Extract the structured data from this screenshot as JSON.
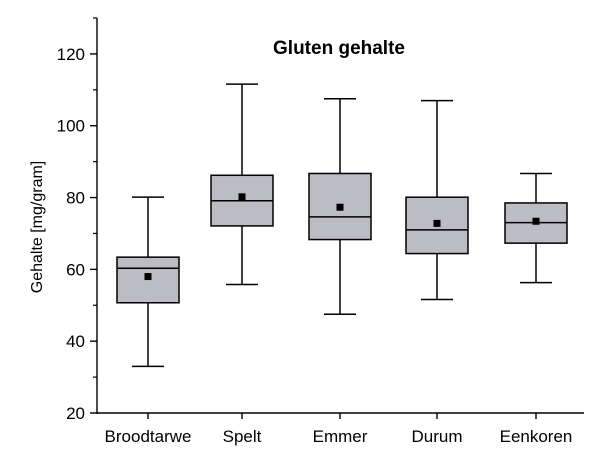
{
  "chart_data": {
    "type": "box",
    "title": "Gluten gehalte",
    "xlabel": "",
    "ylabel": "Gehalte [mg/gram]",
    "ylim": [
      20,
      130
    ],
    "yticks": [
      20,
      40,
      60,
      80,
      100,
      120
    ],
    "categories": [
      "Broodtarwe",
      "Spelt",
      "Emmer",
      "Durum",
      "Eenkoren"
    ],
    "boxes": [
      {
        "min": 33,
        "q1": 50.7,
        "median": 60.3,
        "q3": 63.4,
        "max": 80.1,
        "mean": 58
      },
      {
        "min": 55.8,
        "q1": 72.1,
        "median": 79.1,
        "q3": 86.2,
        "max": 111.6,
        "mean": 80.2
      },
      {
        "min": 47.5,
        "q1": 68.3,
        "median": 74.6,
        "q3": 86.7,
        "max": 107.5,
        "mean": 77.3
      },
      {
        "min": 51.6,
        "q1": 64.4,
        "median": 71,
        "q3": 80.1,
        "max": 107,
        "mean": 72.8
      },
      {
        "min": 56.3,
        "q1": 67.3,
        "median": 73,
        "q3": 78.5,
        "max": 86.7,
        "mean": 73.4
      }
    ],
    "box_fill": "#bcbcc4",
    "stroke_color": "#000000",
    "grid": false,
    "legend": "none"
  }
}
